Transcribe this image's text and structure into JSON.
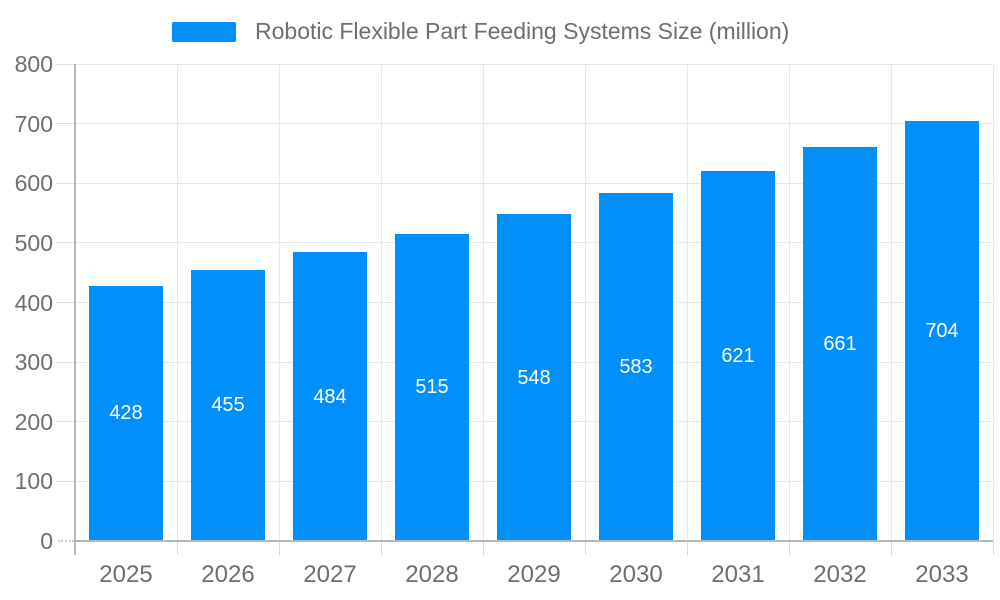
{
  "legend": {
    "label": "Robotic Flexible Part Feeding Systems Size (million)",
    "marker_color": "#008FFB"
  },
  "chart_data": {
    "type": "bar",
    "title": "Robotic Flexible Part Feeding Systems Size (million)",
    "categories": [
      "2025",
      "2026",
      "2027",
      "2028",
      "2029",
      "2030",
      "2031",
      "2032",
      "2033"
    ],
    "series": [
      {
        "name": "Robotic Flexible Part Feeding Systems Size (million)",
        "values": [
          428,
          455,
          484,
          515,
          548,
          583,
          621,
          661,
          704
        ]
      }
    ],
    "xlabel": "",
    "ylabel": "",
    "ylim": [
      0,
      800
    ],
    "yticks": [
      0,
      100,
      200,
      300,
      400,
      500,
      600,
      700,
      800
    ],
    "grid": true,
    "legend_position": "top",
    "bar_color": "#008FFB",
    "bar_label_color": "#FFFFFF",
    "axis_text_color": "#6E6E6E",
    "gridline_color": "#E7E7E7",
    "axis_line_color": "#B6B6B6"
  }
}
